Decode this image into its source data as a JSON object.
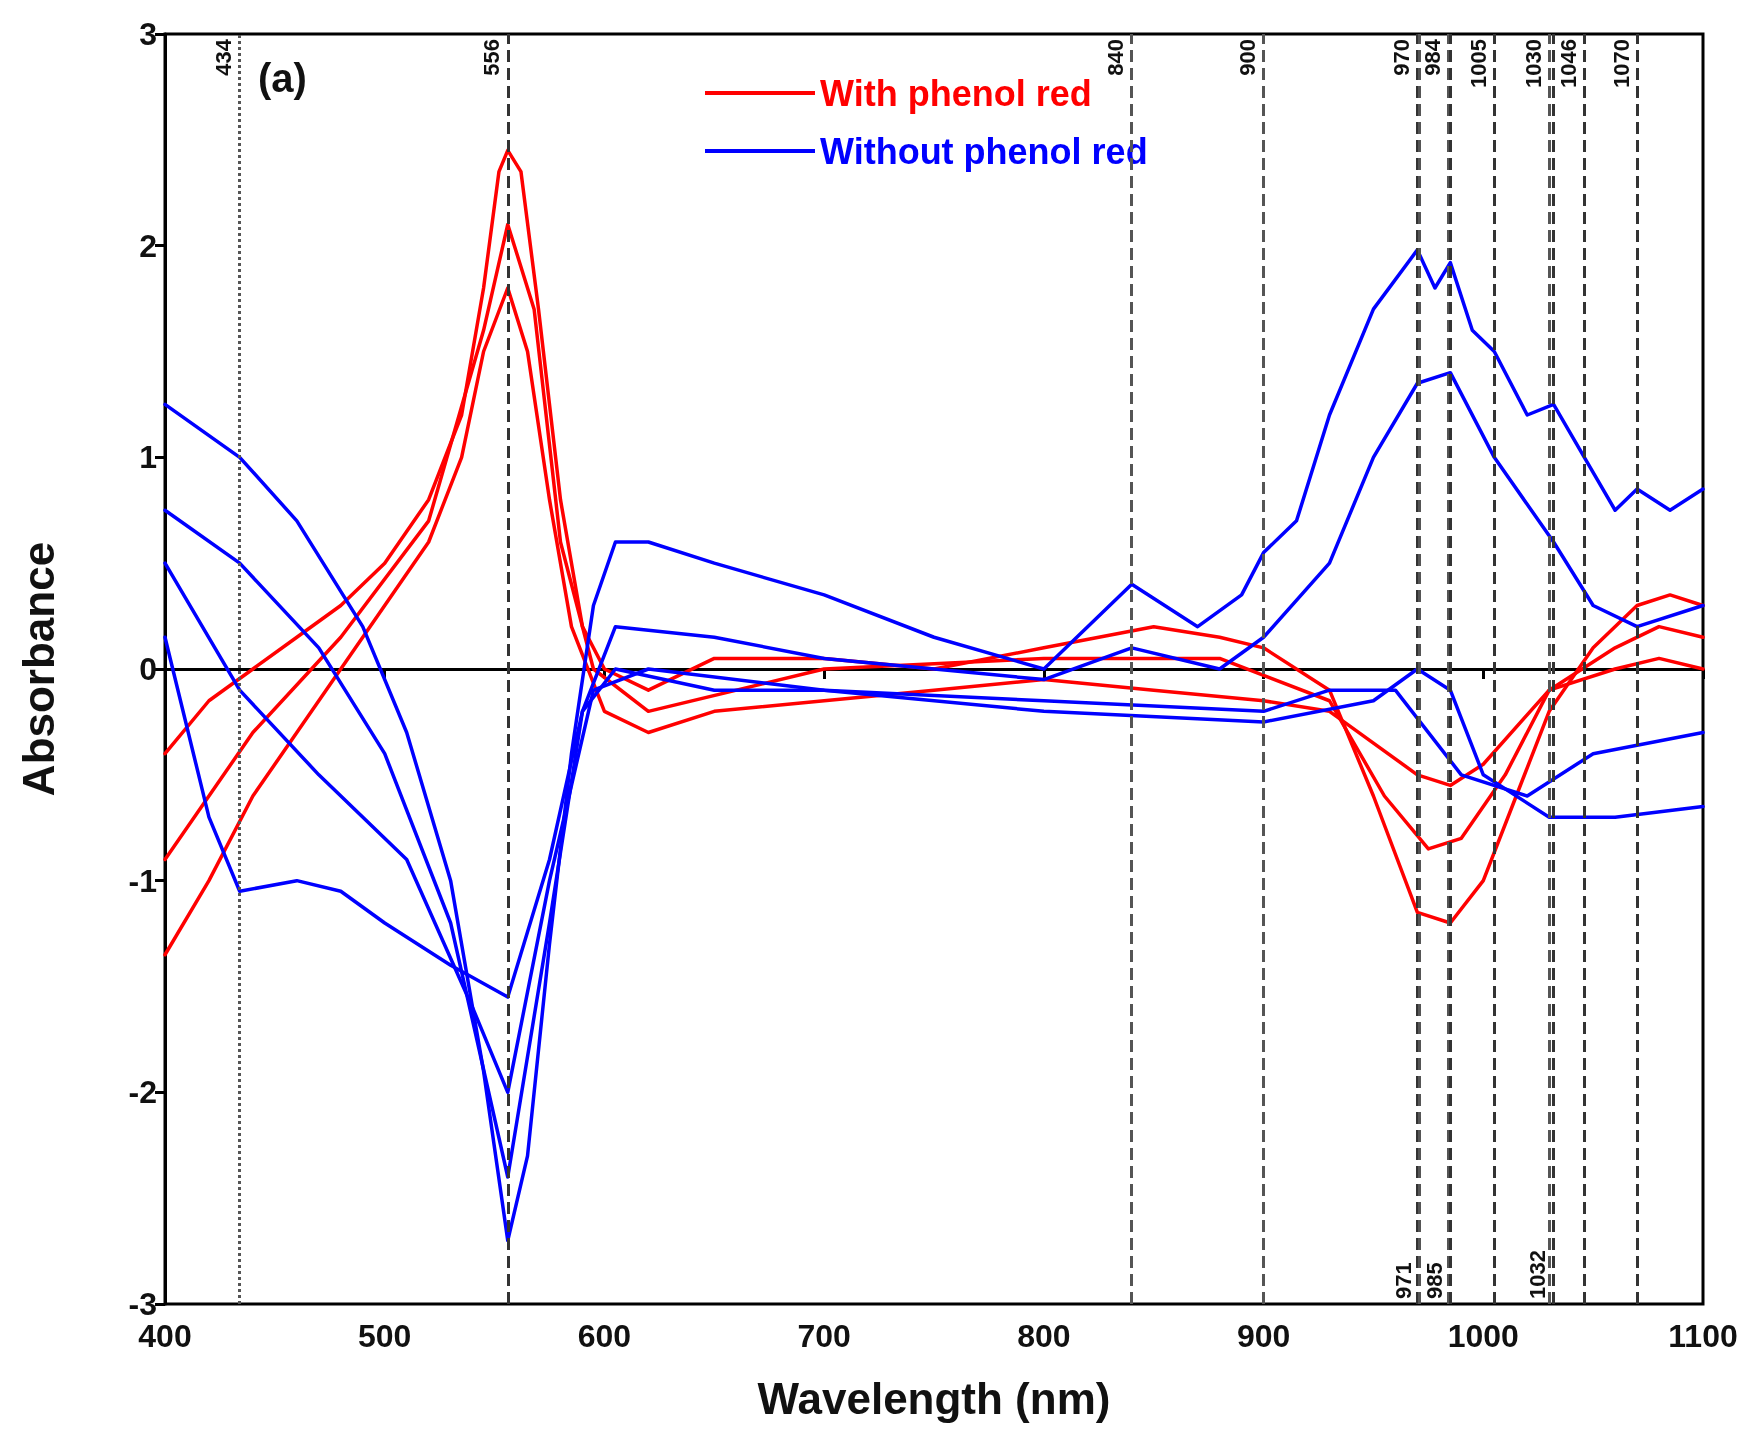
{
  "chart_data": {
    "type": "line",
    "xlabel": "Wavelength (nm)",
    "ylabel": "Absorbance",
    "annotations": [
      "(a)"
    ],
    "xlim": [
      400,
      1100
    ],
    "xticks": [
      400,
      500,
      600,
      700,
      800,
      900,
      1000,
      1100
    ],
    "ylim": [
      -3,
      3
    ],
    "yticks": [
      -3,
      -2,
      -1,
      0,
      1,
      2,
      3
    ],
    "grid": false,
    "legend": "top",
    "marker": "none",
    "line_style": "solid",
    "series": [
      {
        "name": "With phenol red",
        "color": "#ff0000",
        "x": [
          400,
          420,
          440,
          460,
          480,
          500,
          520,
          535,
          545,
          552,
          556,
          562,
          570,
          580,
          590,
          600,
          620,
          650,
          700,
          750,
          800,
          850,
          880,
          900,
          930,
          950,
          970,
          985,
          1000,
          1015,
          1030,
          1050,
          1070,
          1085,
          1100
        ],
        "values": [
          -0.4,
          -0.15,
          0.0,
          0.15,
          0.3,
          0.5,
          0.8,
          1.2,
          1.8,
          2.35,
          2.45,
          2.35,
          1.7,
          0.8,
          0.2,
          0.0,
          -0.1,
          0.05,
          0.05,
          0.0,
          0.1,
          0.2,
          0.15,
          0.1,
          -0.1,
          -0.6,
          -1.15,
          -1.2,
          -1.0,
          -0.6,
          -0.2,
          0.1,
          0.3,
          0.35,
          0.3
        ]
      },
      {
        "color": "#ff0000",
        "x": [
          400,
          440,
          480,
          520,
          545,
          556,
          568,
          580,
          595,
          620,
          700,
          800,
          880,
          930,
          955,
          975,
          990,
          1010,
          1030,
          1060,
          1080,
          1100
        ],
        "values": [
          -0.9,
          -0.3,
          0.15,
          0.7,
          1.6,
          2.1,
          1.7,
          0.6,
          0.0,
          -0.2,
          0.0,
          0.05,
          0.05,
          -0.15,
          -0.6,
          -0.85,
          -0.8,
          -0.5,
          -0.1,
          0.1,
          0.2,
          0.15
        ]
      },
      {
        "color": "#ff0000",
        "x": [
          400,
          420,
          440,
          460,
          480,
          500,
          520,
          535,
          545,
          556,
          565,
          575,
          585,
          600,
          620,
          650,
          700,
          750,
          800,
          850,
          900,
          930,
          950,
          970,
          985,
          1000,
          1030,
          1060,
          1080,
          1100
        ],
        "values": [
          -1.35,
          -1.0,
          -0.6,
          -0.3,
          0.0,
          0.3,
          0.6,
          1.0,
          1.5,
          1.8,
          1.5,
          0.8,
          0.2,
          -0.2,
          -0.3,
          -0.2,
          -0.15,
          -0.1,
          -0.05,
          -0.1,
          -0.15,
          -0.2,
          -0.35,
          -0.5,
          -0.55,
          -0.45,
          -0.1,
          0.0,
          0.05,
          0.0
        ]
      },
      {
        "name": "Without phenol red",
        "color": "#0000ff",
        "x": [
          400,
          434,
          460,
          490,
          510,
          530,
          545,
          556,
          565,
          575,
          585,
          595,
          605,
          620,
          650,
          700,
          750,
          800,
          840,
          870,
          890,
          900,
          915,
          930,
          950,
          970,
          978,
          985,
          995,
          1005,
          1020,
          1032,
          1046,
          1060,
          1070,
          1085,
          1100
        ],
        "values": [
          1.25,
          1.0,
          0.7,
          0.2,
          -0.3,
          -1.0,
          -1.9,
          -2.7,
          -2.3,
          -1.3,
          -0.4,
          0.3,
          0.6,
          0.6,
          0.5,
          0.35,
          0.15,
          0.0,
          0.4,
          0.2,
          0.35,
          0.55,
          0.7,
          1.2,
          1.7,
          1.98,
          1.8,
          1.92,
          1.6,
          1.5,
          1.2,
          1.25,
          1.0,
          0.75,
          0.85,
          0.75,
          0.85
        ]
      },
      {
        "color": "#0000ff",
        "x": [
          400,
          434,
          470,
          500,
          530,
          556,
          575,
          590,
          605,
          650,
          700,
          800,
          840,
          880,
          900,
          930,
          950,
          970,
          985,
          1005,
          1032,
          1050,
          1070,
          1100
        ],
        "values": [
          0.75,
          0.5,
          0.1,
          -0.4,
          -1.2,
          -2.4,
          -1.2,
          -0.2,
          0.2,
          0.15,
          0.05,
          -0.05,
          0.1,
          0.0,
          0.15,
          0.5,
          1.0,
          1.35,
          1.4,
          1.0,
          0.6,
          0.3,
          0.2,
          0.3
        ]
      },
      {
        "color": "#0000ff",
        "x": [
          400,
          434,
          470,
          510,
          540,
          556,
          575,
          595,
          620,
          700,
          800,
          900,
          930,
          960,
          990,
          1020,
          1050,
          1100
        ],
        "values": [
          0.5,
          -0.1,
          -0.5,
          -0.9,
          -1.6,
          -2.0,
          -1.0,
          -0.1,
          0.0,
          -0.1,
          -0.15,
          -0.2,
          -0.1,
          -0.1,
          -0.5,
          -0.6,
          -0.4,
          -0.3
        ]
      },
      {
        "color": "#0000ff",
        "x": [
          400,
          420,
          434,
          460,
          480,
          500,
          530,
          556,
          575,
          590,
          605,
          650,
          700,
          800,
          900,
          950,
          970,
          985,
          1000,
          1030,
          1060,
          1100
        ],
        "values": [
          0.15,
          -0.7,
          -1.05,
          -1.0,
          -1.05,
          -1.2,
          -1.4,
          -1.55,
          -0.9,
          -0.2,
          0.0,
          -0.1,
          -0.1,
          -0.2,
          -0.25,
          -0.15,
          0.0,
          -0.1,
          -0.5,
          -0.7,
          -0.7,
          -0.65
        ]
      }
    ],
    "ref_lines": [
      {
        "axis": "x",
        "value": 434,
        "label": "434",
        "color": "#555555",
        "line_style": "dotted"
      },
      {
        "axis": "x",
        "value": 556,
        "label": "556",
        "color": "#333333",
        "line_style": "dashed"
      },
      {
        "axis": "x",
        "value": 840,
        "label": "840",
        "color": "#555555",
        "line_style": "dashed"
      },
      {
        "axis": "x",
        "value": 900,
        "label": "900",
        "color": "#555555",
        "line_style": "dashed"
      },
      {
        "axis": "x",
        "value": 970,
        "label": "970",
        "color": "#333333",
        "line_style": "dashed"
      },
      {
        "axis": "x",
        "value": 971,
        "label": "971",
        "color": "#555555",
        "line_style": "dashed"
      },
      {
        "axis": "x",
        "value": 984,
        "label": "984",
        "color": "#555555",
        "line_style": "dashed"
      },
      {
        "axis": "x",
        "value": 985,
        "label": "985",
        "color": "#333333",
        "line_style": "dashed"
      },
      {
        "axis": "x",
        "value": 1005,
        "label": "1005",
        "color": "#333333",
        "line_style": "dashed"
      },
      {
        "axis": "x",
        "value": 1030,
        "label": "1030",
        "color": "#555555",
        "line_style": "dashed"
      },
      {
        "axis": "x",
        "value": 1032,
        "label": "1032",
        "color": "#333333",
        "line_style": "dashed"
      },
      {
        "axis": "x",
        "value": 1046,
        "label": "1046",
        "color": "#333333",
        "line_style": "dashed"
      },
      {
        "axis": "x",
        "value": 1070,
        "label": "1070",
        "color": "#333333",
        "line_style": "dashed"
      }
    ]
  }
}
